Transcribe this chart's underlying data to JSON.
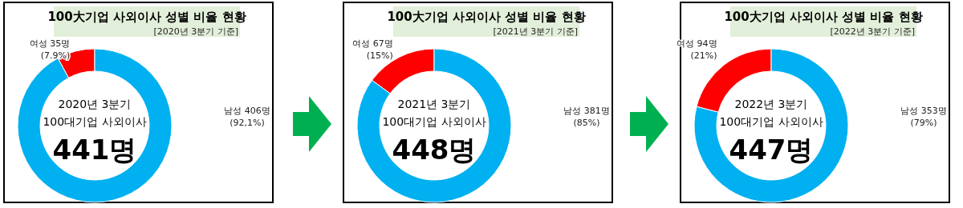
{
  "chart_data": [
    {
      "type": "donut",
      "title": "100大기업 사외이사 성별 비율 현황",
      "categories": [
        "여성",
        "남성"
      ],
      "values": [
        35,
        406
      ],
      "colors": [
        "#ff0000",
        "#00b0f0"
      ],
      "value_labels": [
        "35명\n(7.9%)",
        "406명\n(92,1%)"
      ],
      "legend": false,
      "annotations": [
        "[2020년 3분기 기준]",
        "2020년 3분기",
        "100대기업 사외이사",
        "441명"
      ]
    },
    {
      "type": "donut",
      "title": "100大기업 사외이사 성별 비율 현황",
      "categories": [
        "여성",
        "남성"
      ],
      "values": [
        67,
        381
      ],
      "colors": [
        "#ff0000",
        "#00b0f0"
      ],
      "value_labels": [
        "67명\n(15%)",
        "381명\n(85%)"
      ],
      "legend": false,
      "annotations": [
        "[2021년 3분기 기준]",
        "2021년 3분기",
        "100대기업 사외이사",
        "448명"
      ]
    },
    {
      "type": "donut",
      "title": "100大기업 사외이사 성별 비율 현황",
      "categories": [
        "여성",
        "남성"
      ],
      "values": [
        94,
        353
      ],
      "colors": [
        "#ff0000",
        "#00b0f0"
      ],
      "value_labels": [
        "94명\n(21%)",
        "353명\n(79%)"
      ],
      "legend": false,
      "annotations": [
        "[2022년 3분기 기준]",
        "2022년 3분기",
        "100대기업 사외이사",
        "447명"
      ]
    }
  ]
}
